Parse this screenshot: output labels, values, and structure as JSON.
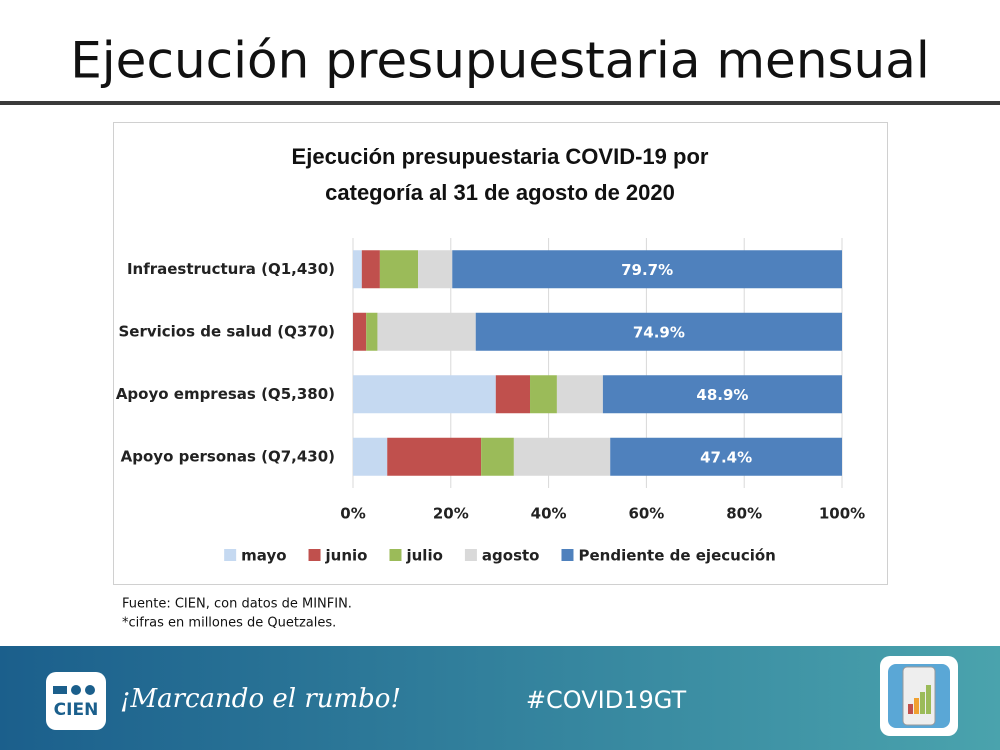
{
  "slide_title": "Ejecución presupuestaria mensual",
  "notes": [
    "Fuente: CIEN, con datos de MINFIN.",
    "*cifras en millones de Quetzales."
  ],
  "footer": {
    "logo": "CIEN",
    "slogan": "¡Marcando el rumbo!",
    "hashtag": "#COVID19GT"
  },
  "chart_data": {
    "type": "stacked-barh",
    "title": "Ejecución presupuestaria COVID-19 por categoría al 31 de agosto de 2020",
    "categories": [
      "Infraestructura (Q1,430)",
      "Servicios de salud (Q370)",
      "Apoyo empresas (Q5,380)",
      "Apoyo personas (Q7,430)"
    ],
    "series": [
      {
        "name": "mayo",
        "color": "#c5d9f1",
        "values": [
          1.8,
          0,
          29.2,
          7.0
        ]
      },
      {
        "name": "junio",
        "color": "#c0504d",
        "values": [
          3.7,
          2.7,
          7.0,
          19.2
        ]
      },
      {
        "name": "julio",
        "color": "#9bbb59",
        "values": [
          7.8,
          2.3,
          5.5,
          6.7
        ]
      },
      {
        "name": "agosto",
        "color": "#d9d9d9",
        "values": [
          7.0,
          20.1,
          9.4,
          19.7
        ]
      },
      {
        "name": "Pendiente de ejecución",
        "color": "#4f81bd",
        "values": [
          79.7,
          74.9,
          48.9,
          47.4
        ],
        "value_labels": [
          "79.7%",
          "74.9%",
          "48.9%",
          "47.4%"
        ]
      }
    ],
    "xlim": [
      0,
      100
    ],
    "xticks": [
      {
        "value": 0,
        "label": "0%"
      },
      {
        "value": 20,
        "label": "20%"
      },
      {
        "value": 40,
        "label": "40%"
      },
      {
        "value": 60,
        "label": "60%"
      },
      {
        "value": 80,
        "label": "80%"
      },
      {
        "value": 100,
        "label": "100%"
      }
    ],
    "grid": true,
    "legend": "bottom"
  }
}
